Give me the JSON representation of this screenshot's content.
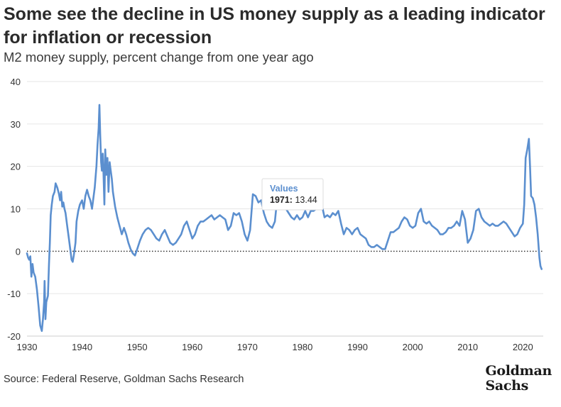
{
  "title": "Some see the decline in US money supply as a leading indicator for inflation or recession",
  "subtitle": "M2 money supply, percent change from one year ago",
  "source": "Source: Federal Reserve, Goldman Sachs Research",
  "logo": {
    "line1": "Goldman",
    "line2": "Sachs"
  },
  "colors": {
    "line": "#5b8fcf",
    "grid": "#e6e6e6",
    "zero": "#333333"
  },
  "tooltip": {
    "title": "Values",
    "key": "1971:",
    "value": "13.44"
  },
  "chart_data": {
    "type": "line",
    "title": "Some see the decline in US money supply as a leading indicator for inflation or recession",
    "subtitle": "M2 money supply, percent change from one year ago",
    "xlabel": "",
    "ylabel": "",
    "xlim": [
      1930,
      2023.7
    ],
    "ylim": [
      -20,
      40
    ],
    "xticks": [
      1930,
      1940,
      1950,
      1960,
      1970,
      1980,
      1990,
      2000,
      2010,
      2020
    ],
    "yticks": [
      -20,
      -10,
      0,
      10,
      20,
      30,
      40
    ],
    "grid": "horizontal",
    "reference_line": {
      "y": 0,
      "style": "dotted"
    },
    "series": [
      {
        "values": [
          [
            1930.0,
            -0.5
          ],
          [
            1930.2,
            -1.5
          ],
          [
            1930.4,
            -2.0
          ],
          [
            1930.6,
            -1.2
          ],
          [
            1930.8,
            -6.0
          ],
          [
            1931.0,
            -3.0
          ],
          [
            1931.2,
            -5.0
          ],
          [
            1931.5,
            -6.0
          ],
          [
            1931.8,
            -9.0
          ],
          [
            1932.1,
            -13.0
          ],
          [
            1932.4,
            -17.5
          ],
          [
            1932.7,
            -18.8
          ],
          [
            1932.9,
            -16.0
          ],
          [
            1933.1,
            -12.0
          ],
          [
            1933.2,
            -7.0
          ],
          [
            1933.35,
            -16.0
          ],
          [
            1933.5,
            -12.0
          ],
          [
            1933.8,
            -10.5
          ],
          [
            1934.0,
            -3.0
          ],
          [
            1934.15,
            2.0
          ],
          [
            1934.3,
            8.5
          ],
          [
            1934.5,
            11.0
          ],
          [
            1934.7,
            13.0
          ],
          [
            1935.0,
            14.0
          ],
          [
            1935.2,
            16.0
          ],
          [
            1935.5,
            15.0
          ],
          [
            1935.8,
            13.5
          ],
          [
            1936.0,
            12.0
          ],
          [
            1936.2,
            14.0
          ],
          [
            1936.4,
            10.5
          ],
          [
            1936.6,
            11.5
          ],
          [
            1936.8,
            10.0
          ],
          [
            1937.0,
            9.0
          ],
          [
            1937.3,
            6.0
          ],
          [
            1937.6,
            3.0
          ],
          [
            1937.9,
            0.0
          ],
          [
            1938.1,
            -2.0
          ],
          [
            1938.3,
            -2.5
          ],
          [
            1938.5,
            -1.0
          ],
          [
            1938.8,
            2.0
          ],
          [
            1939.0,
            7.0
          ],
          [
            1939.3,
            9.5
          ],
          [
            1939.6,
            11.0
          ],
          [
            1940.0,
            12.0
          ],
          [
            1940.3,
            10.0
          ],
          [
            1940.6,
            13.0
          ],
          [
            1940.9,
            14.5
          ],
          [
            1941.2,
            13.0
          ],
          [
            1941.5,
            12.0
          ],
          [
            1941.8,
            10.0
          ],
          [
            1942.0,
            12.0
          ],
          [
            1942.3,
            15.0
          ],
          [
            1942.6,
            20.0
          ],
          [
            1942.8,
            25.0
          ],
          [
            1943.0,
            29.0
          ],
          [
            1943.15,
            34.5
          ],
          [
            1943.3,
            27.0
          ],
          [
            1943.45,
            21.0
          ],
          [
            1943.6,
            19.0
          ],
          [
            1943.75,
            23.0
          ],
          [
            1943.9,
            18.0
          ],
          [
            1944.05,
            11.0
          ],
          [
            1944.2,
            24.0
          ],
          [
            1944.4,
            18.0
          ],
          [
            1944.6,
            22.0
          ],
          [
            1944.8,
            14.0
          ],
          [
            1945.0,
            21.0
          ],
          [
            1945.2,
            19.0
          ],
          [
            1945.4,
            17.0
          ],
          [
            1945.6,
            14.0
          ],
          [
            1946.0,
            10.5
          ],
          [
            1946.4,
            8.0
          ],
          [
            1946.8,
            6.0
          ],
          [
            1947.2,
            4.0
          ],
          [
            1947.6,
            5.5
          ],
          [
            1948.0,
            4.0
          ],
          [
            1948.4,
            2.0
          ],
          [
            1948.8,
            0.5
          ],
          [
            1949.2,
            -0.5
          ],
          [
            1949.6,
            -1.0
          ],
          [
            1950.0,
            0.5
          ],
          [
            1950.5,
            2.5
          ],
          [
            1951.0,
            4.0
          ],
          [
            1951.5,
            5.0
          ],
          [
            1952.0,
            5.5
          ],
          [
            1952.5,
            5.0
          ],
          [
            1953.0,
            4.0
          ],
          [
            1953.5,
            3.0
          ],
          [
            1954.0,
            2.5
          ],
          [
            1954.5,
            4.0
          ],
          [
            1955.0,
            5.0
          ],
          [
            1955.5,
            3.5
          ],
          [
            1956.0,
            2.0
          ],
          [
            1956.5,
            1.5
          ],
          [
            1957.0,
            2.0
          ],
          [
            1957.5,
            3.0
          ],
          [
            1958.0,
            4.0
          ],
          [
            1958.5,
            6.0
          ],
          [
            1959.0,
            7.0
          ],
          [
            1959.5,
            5.0
          ],
          [
            1960.0,
            3.0
          ],
          [
            1960.5,
            4.0
          ],
          [
            1961.0,
            6.0
          ],
          [
            1961.5,
            7.0
          ],
          [
            1962.0,
            7.0
          ],
          [
            1962.5,
            7.5
          ],
          [
            1963.0,
            8.0
          ],
          [
            1963.5,
            8.5
          ],
          [
            1964.0,
            7.5
          ],
          [
            1964.5,
            8.0
          ],
          [
            1965.0,
            8.5
          ],
          [
            1965.5,
            8.0
          ],
          [
            1966.0,
            7.5
          ],
          [
            1966.5,
            5.0
          ],
          [
            1967.0,
            6.0
          ],
          [
            1967.5,
            9.0
          ],
          [
            1968.0,
            8.5
          ],
          [
            1968.5,
            9.0
          ],
          [
            1969.0,
            7.0
          ],
          [
            1969.5,
            4.0
          ],
          [
            1970.0,
            2.5
          ],
          [
            1970.5,
            5.0
          ],
          [
            1971.0,
            13.44
          ],
          [
            1971.5,
            13.0
          ],
          [
            1972.0,
            11.5
          ],
          [
            1972.5,
            12.0
          ],
          [
            1973.0,
            9.0
          ],
          [
            1973.5,
            7.0
          ],
          [
            1974.0,
            6.0
          ],
          [
            1974.5,
            5.5
          ],
          [
            1975.0,
            7.0
          ],
          [
            1975.3,
            11.0
          ],
          [
            1975.6,
            13.0
          ],
          [
            1976.0,
            12.0
          ],
          [
            1976.5,
            11.5
          ],
          [
            1977.0,
            10.0
          ],
          [
            1977.5,
            9.0
          ],
          [
            1978.0,
            8.0
          ],
          [
            1978.5,
            7.5
          ],
          [
            1979.0,
            8.5
          ],
          [
            1979.5,
            7.5
          ],
          [
            1980.0,
            8.0
          ],
          [
            1980.5,
            9.5
          ],
          [
            1981.0,
            8.0
          ],
          [
            1981.5,
            9.5
          ],
          [
            1982.0,
            9.5
          ],
          [
            1982.5,
            10.0
          ],
          [
            1983.0,
            13.0
          ],
          [
            1983.5,
            11.0
          ],
          [
            1984.0,
            8.0
          ],
          [
            1984.5,
            8.5
          ],
          [
            1985.0,
            8.0
          ],
          [
            1985.5,
            9.0
          ],
          [
            1986.0,
            8.5
          ],
          [
            1986.5,
            9.5
          ],
          [
            1987.0,
            6.5
          ],
          [
            1987.5,
            4.0
          ],
          [
            1988.0,
            5.5
          ],
          [
            1988.5,
            5.0
          ],
          [
            1989.0,
            4.0
          ],
          [
            1989.5,
            5.0
          ],
          [
            1990.0,
            5.5
          ],
          [
            1990.5,
            4.0
          ],
          [
            1991.0,
            3.5
          ],
          [
            1991.5,
            3.0
          ],
          [
            1992.0,
            1.5
          ],
          [
            1992.5,
            1.0
          ],
          [
            1993.0,
            1.0
          ],
          [
            1993.5,
            1.5
          ],
          [
            1994.0,
            1.0
          ],
          [
            1994.5,
            0.5
          ],
          [
            1995.0,
            0.5
          ],
          [
            1995.5,
            2.5
          ],
          [
            1996.0,
            4.5
          ],
          [
            1996.5,
            4.5
          ],
          [
            1997.0,
            5.0
          ],
          [
            1997.5,
            5.5
          ],
          [
            1998.0,
            7.0
          ],
          [
            1998.5,
            8.0
          ],
          [
            1999.0,
            7.5
          ],
          [
            1999.5,
            6.0
          ],
          [
            2000.0,
            5.5
          ],
          [
            2000.5,
            6.0
          ],
          [
            2001.0,
            9.0
          ],
          [
            2001.5,
            10.0
          ],
          [
            2002.0,
            7.0
          ],
          [
            2002.5,
            6.5
          ],
          [
            2003.0,
            7.0
          ],
          [
            2003.5,
            6.0
          ],
          [
            2004.0,
            5.5
          ],
          [
            2004.5,
            5.0
          ],
          [
            2005.0,
            4.0
          ],
          [
            2005.5,
            4.0
          ],
          [
            2006.0,
            4.5
          ],
          [
            2006.5,
            5.5
          ],
          [
            2007.0,
            5.5
          ],
          [
            2007.5,
            6.0
          ],
          [
            2008.0,
            7.0
          ],
          [
            2008.5,
            6.0
          ],
          [
            2009.0,
            9.5
          ],
          [
            2009.5,
            7.5
          ],
          [
            2010.0,
            2.0
          ],
          [
            2010.5,
            3.0
          ],
          [
            2011.0,
            5.0
          ],
          [
            2011.5,
            9.5
          ],
          [
            2012.0,
            10.0
          ],
          [
            2012.5,
            8.0
          ],
          [
            2013.0,
            7.0
          ],
          [
            2013.5,
            6.5
          ],
          [
            2014.0,
            6.0
          ],
          [
            2014.5,
            6.5
          ],
          [
            2015.0,
            6.0
          ],
          [
            2015.5,
            6.0
          ],
          [
            2016.0,
            6.5
          ],
          [
            2016.5,
            7.0
          ],
          [
            2017.0,
            6.5
          ],
          [
            2017.5,
            5.5
          ],
          [
            2018.0,
            4.5
          ],
          [
            2018.5,
            3.5
          ],
          [
            2019.0,
            4.0
          ],
          [
            2019.5,
            5.5
          ],
          [
            2020.0,
            6.5
          ],
          [
            2020.25,
            11.0
          ],
          [
            2020.5,
            22.0
          ],
          [
            2020.8,
            24.0
          ],
          [
            2021.1,
            26.5
          ],
          [
            2021.3,
            20.0
          ],
          [
            2021.5,
            13.0
          ],
          [
            2021.8,
            12.5
          ],
          [
            2022.1,
            11.0
          ],
          [
            2022.4,
            8.0
          ],
          [
            2022.7,
            4.0
          ],
          [
            2023.0,
            -1.5
          ],
          [
            2023.2,
            -3.5
          ],
          [
            2023.4,
            -4.2
          ]
        ]
      }
    ]
  }
}
